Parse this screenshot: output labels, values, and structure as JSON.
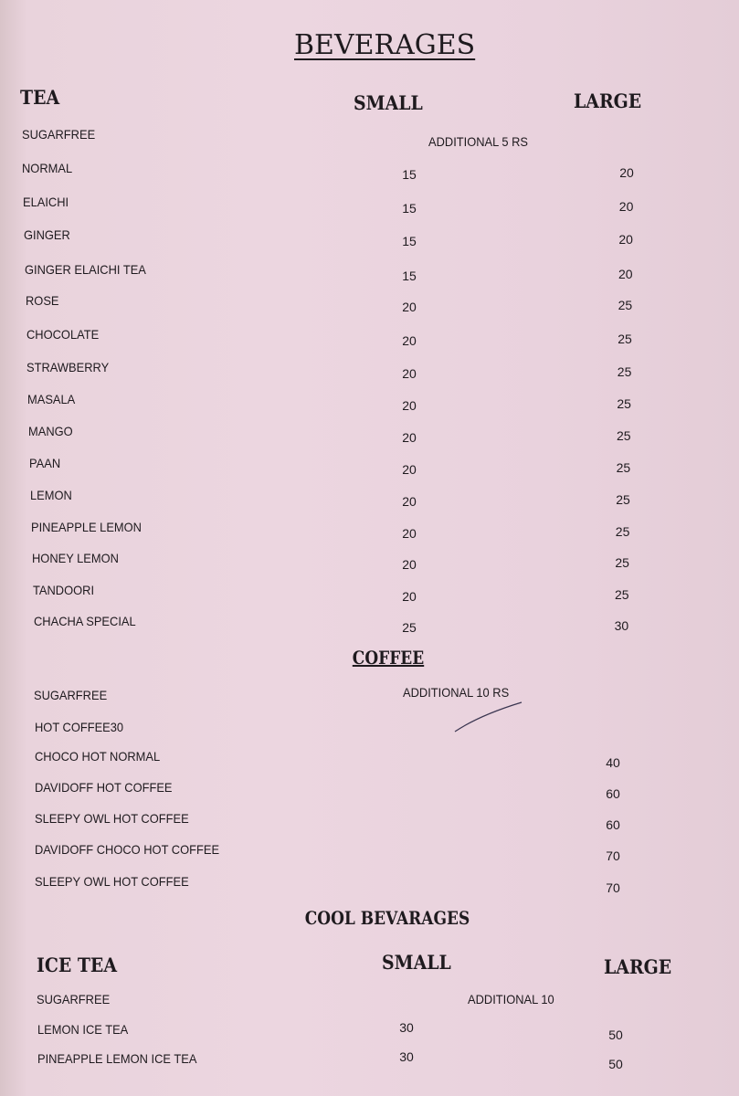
{
  "title": "BEVERAGES",
  "tea": {
    "heading": "TEA",
    "small_label": "SMALL",
    "large_label": "LARGE",
    "sugarfree": {
      "name": "SUGARFREE",
      "note": "ADDITIONAL 5 RS"
    },
    "items": [
      {
        "name": "NORMAL",
        "small": "15",
        "large": "20"
      },
      {
        "name": "ELAICHI",
        "small": "15",
        "large": "20"
      },
      {
        "name": "GINGER",
        "small": "15",
        "large": "20"
      },
      {
        "name": "GINGER ELAICHI TEA",
        "small": "15",
        "large": "20"
      },
      {
        "name": "ROSE",
        "small": "20",
        "large": "25"
      },
      {
        "name": "CHOCOLATE",
        "small": "20",
        "large": "25"
      },
      {
        "name": "STRAWBERRY",
        "small": "20",
        "large": "25"
      },
      {
        "name": "MASALA",
        "small": "20",
        "large": "25"
      },
      {
        "name": "MANGO",
        "small": "20",
        "large": "25"
      },
      {
        "name": "PAAN",
        "small": "20",
        "large": "25"
      },
      {
        "name": "LEMON",
        "small": "20",
        "large": "25"
      },
      {
        "name": "PINEAPPLE LEMON",
        "small": "20",
        "large": "25"
      },
      {
        "name": "HONEY LEMON",
        "small": "20",
        "large": "25"
      },
      {
        "name": "TANDOORI",
        "small": "20",
        "large": "25"
      },
      {
        "name": "CHACHA SPECIAL",
        "small": "25",
        "large": "30"
      }
    ]
  },
  "coffee": {
    "heading": "COFFEE",
    "sugarfree": {
      "name": "SUGARFREE",
      "note": "ADDITIONAL 10 RS"
    },
    "items": [
      {
        "name": "HOT COFFEE30",
        "price": ""
      },
      {
        "name": "CHOCO HOT NORMAL",
        "price": "40"
      },
      {
        "name": "DAVIDOFF HOT COFFEE",
        "price": "60"
      },
      {
        "name": "SLEEPY OWL HOT COFFEE",
        "price": "60"
      },
      {
        "name": "DAVIDOFF CHOCO HOT COFFEE",
        "price": "70"
      },
      {
        "name": "SLEEPY OWL HOT COFFEE",
        "price": "70"
      }
    ]
  },
  "cool": {
    "heading": "COOL BEVARAGES",
    "subheading": "ICE TEA",
    "small_label": "SMALL",
    "large_label": "LARGE",
    "sugarfree": {
      "name": "SUGARFREE",
      "note": "ADDITIONAL 10"
    },
    "items": [
      {
        "name": "LEMON ICE TEA",
        "small": "30",
        "large": "50"
      },
      {
        "name": "PINEAPPLE LEMON ICE TEA",
        "small": "30",
        "large": "50"
      }
    ]
  }
}
